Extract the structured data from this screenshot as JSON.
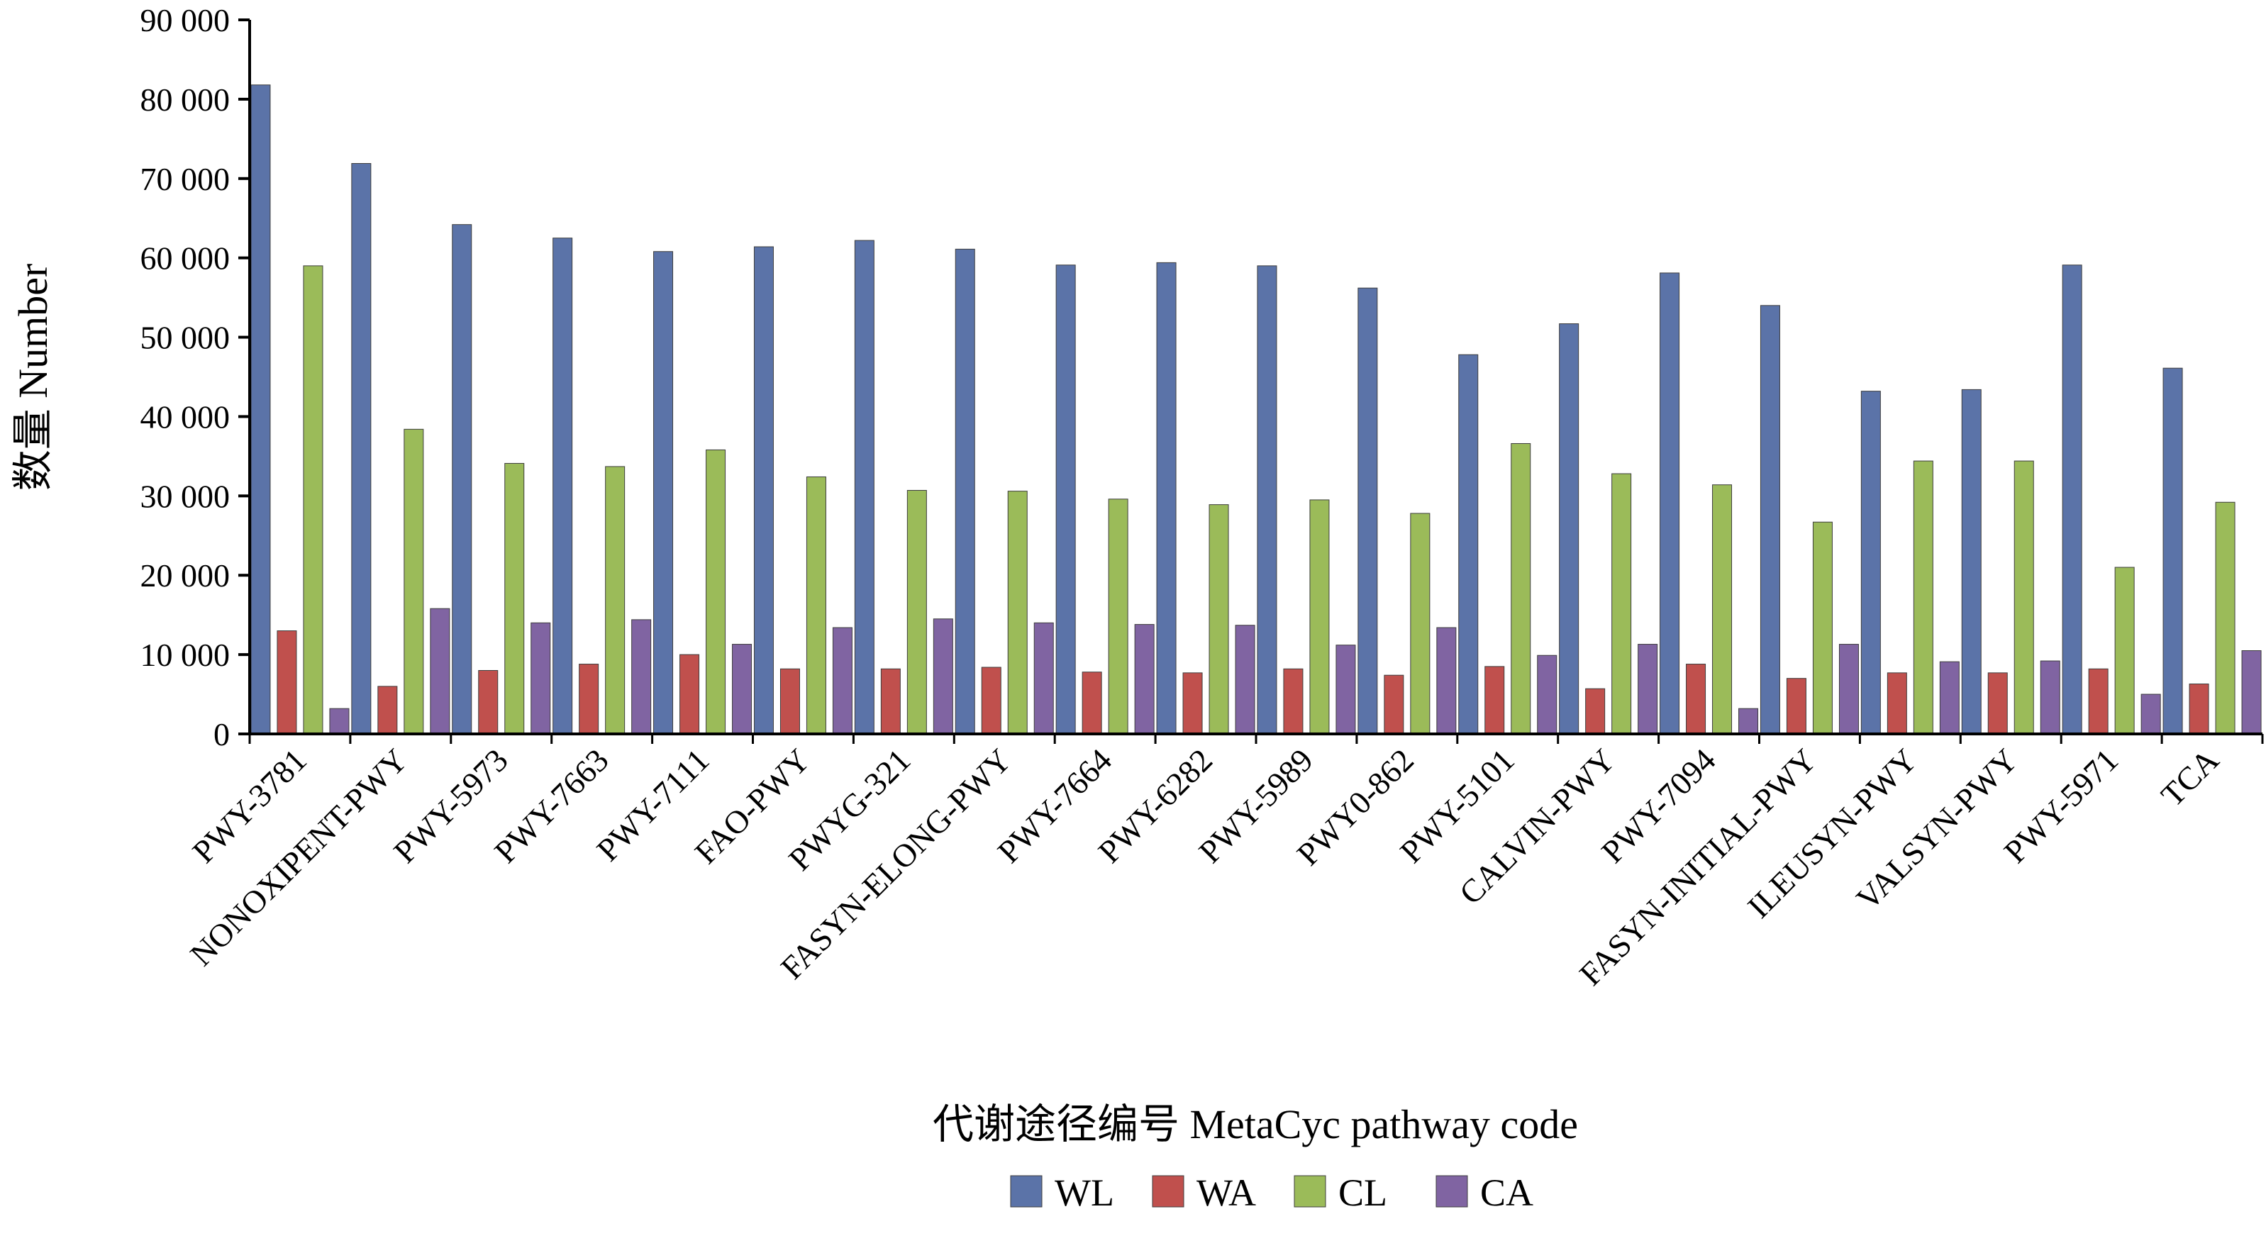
{
  "chart_data": {
    "type": "bar",
    "xlabel": "代谢途径编号  MetaCyc pathway code",
    "ylabel": "数量  Number",
    "ylim": [
      0,
      90000
    ],
    "yticks": [
      0,
      10000,
      20000,
      30000,
      40000,
      50000,
      60000,
      70000,
      80000,
      90000
    ],
    "ytick_labels": [
      "0",
      "10 000",
      "20 000",
      "30 000",
      "40 000",
      "50 000",
      "60 000",
      "70 000",
      "80 000",
      "90 000"
    ],
    "grid": false,
    "legend_position": "bottom",
    "categories": [
      "PWY-3781",
      "NONOXIPENT-PWY",
      "PWY-5973",
      "PWY-7663",
      "PWY-7111",
      "FAO-PWY",
      "PWYG-321",
      "FASYN-ELONG-PWY",
      "PWY-7664",
      "PWY-6282",
      "PWY-5989",
      "PWY0-862",
      "PWY-5101",
      "CALVIN-PWY",
      "PWY-7094",
      "FASYN-INITIAL-PWY",
      "ILEUSYN-PWY",
      "VALSYN-PWY",
      "PWY-5971",
      "TCA"
    ],
    "series": [
      {
        "name": "WL",
        "color": "#5b73a8",
        "values": [
          81800,
          71900,
          64200,
          62500,
          60800,
          61400,
          62200,
          61100,
          59100,
          59400,
          59000,
          56200,
          47800,
          51700,
          58100,
          54000,
          43200,
          43400,
          59100,
          46100
        ]
      },
      {
        "name": "WA",
        "color": "#c0504d",
        "values": [
          13000,
          6000,
          8000,
          8800,
          10000,
          8200,
          8200,
          8400,
          7800,
          7700,
          8200,
          7400,
          8500,
          5700,
          8800,
          7000,
          7700,
          7700,
          8200,
          6300
        ]
      },
      {
        "name": "CL",
        "color": "#9bbb59",
        "values": [
          59000,
          38400,
          34100,
          33700,
          35800,
          32400,
          30700,
          30600,
          29600,
          28900,
          29500,
          27800,
          36600,
          32800,
          31400,
          26700,
          34400,
          34400,
          21000,
          29200
        ]
      },
      {
        "name": "CA",
        "color": "#8064a2",
        "values": [
          3200,
          15800,
          14000,
          14400,
          11300,
          13400,
          14500,
          14000,
          13800,
          13700,
          11200,
          13400,
          9900,
          11300,
          3200,
          11300,
          9100,
          9200,
          5000,
          10500
        ]
      }
    ]
  }
}
